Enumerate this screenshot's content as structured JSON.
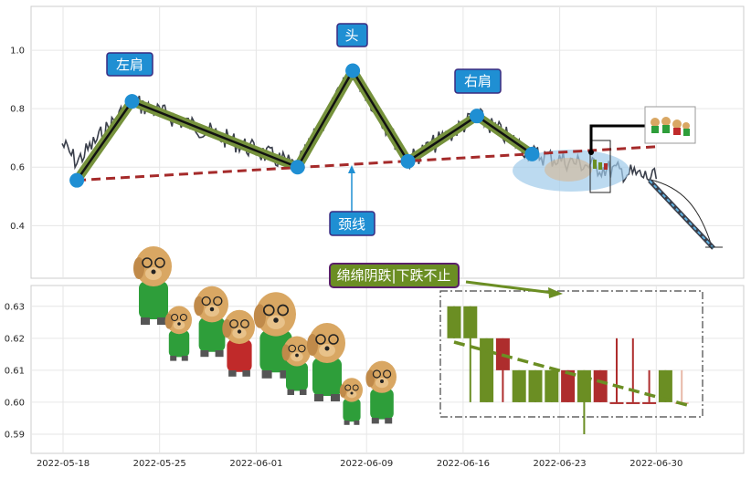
{
  "chart_data": [
    {
      "type": "line",
      "panel": "top",
      "y_ticks": [
        "0.4",
        "0.6",
        "0.8",
        "1.0"
      ],
      "y_tick_values": [
        0.4,
        0.6,
        0.8,
        1.0
      ],
      "ylim": [
        0.22,
        1.15
      ],
      "grid": true,
      "pattern_points": [
        {
          "date": "2022-05-19",
          "value": 0.555
        },
        {
          "date": "2022-05-23",
          "value": 0.825
        },
        {
          "date": "2022-06-04",
          "value": 0.6
        },
        {
          "date": "2022-06-08",
          "value": 0.93
        },
        {
          "date": "2022-06-12",
          "value": 0.62
        },
        {
          "date": "2022-06-17",
          "value": 0.775
        },
        {
          "date": "2022-06-21",
          "value": 0.645
        }
      ],
      "neckline": {
        "from": {
          "date": "2022-05-19",
          "value": 0.555
        },
        "to": {
          "date": "2022-06-30",
          "value": 0.67
        }
      },
      "annotations": {
        "left_shoulder": "左肩",
        "head": "头",
        "right_shoulder": "右肩",
        "neckline": "颈线"
      }
    },
    {
      "type": "candlestick",
      "panel": "bottom",
      "y_ticks": [
        "0.59",
        "0.60",
        "0.61",
        "0.62",
        "0.63"
      ],
      "y_tick_values": [
        0.59,
        0.6,
        0.61,
        0.62,
        0.63
      ],
      "ylim": [
        0.584,
        0.6365
      ],
      "x_ticks": [
        "2022-05-18",
        "2022-05-25",
        "2022-06-01",
        "2022-06-09",
        "2022-06-16",
        "2022-06-23",
        "2022-06-30"
      ],
      "grid": true,
      "candles": [
        {
          "open": 0.63,
          "close": 0.62,
          "high": 0.63,
          "low": 0.62,
          "color": "green"
        },
        {
          "open": 0.63,
          "close": 0.62,
          "high": 0.63,
          "low": 0.6,
          "color": "green"
        },
        {
          "open": 0.62,
          "close": 0.6,
          "high": 0.62,
          "low": 0.6,
          "color": "green"
        },
        {
          "open": 0.61,
          "close": 0.62,
          "high": 0.62,
          "low": 0.6,
          "color": "red"
        },
        {
          "open": 0.61,
          "close": 0.6,
          "high": 0.61,
          "low": 0.6,
          "color": "green"
        },
        {
          "open": 0.61,
          "close": 0.6,
          "high": 0.61,
          "low": 0.6,
          "color": "green"
        },
        {
          "open": 0.61,
          "close": 0.6,
          "high": 0.61,
          "low": 0.6,
          "color": "green"
        },
        {
          "open": 0.6,
          "close": 0.61,
          "high": 0.61,
          "low": 0.6,
          "color": "red"
        },
        {
          "open": 0.61,
          "close": 0.6,
          "high": 0.61,
          "low": 0.59,
          "color": "green"
        },
        {
          "open": 0.6,
          "close": 0.61,
          "high": 0.61,
          "low": 0.6,
          "color": "red"
        },
        {
          "open": 0.6,
          "close": 0.6,
          "high": 0.62,
          "low": 0.6,
          "color": "red"
        },
        {
          "open": 0.6,
          "close": 0.6,
          "high": 0.62,
          "low": 0.6,
          "color": "red"
        },
        {
          "open": 0.6,
          "close": 0.6,
          "high": 0.61,
          "low": 0.6,
          "color": "red"
        },
        {
          "open": 0.61,
          "close": 0.6,
          "high": 0.61,
          "low": 0.6,
          "color": "green"
        },
        {
          "open": 0.6,
          "close": 0.6,
          "high": 0.61,
          "low": 0.6,
          "color": "pink"
        }
      ],
      "annotations": {
        "trend_note": "绵绵阴跌|下跌不止"
      }
    }
  ],
  "colors": {
    "price_line": "#3a3f4b",
    "pattern_fill": "#76923c",
    "marker": "#1f8fd3",
    "neckline": "#a52a2a",
    "callout_bg": "#1f8fd3",
    "callout_border": "#3a2a80",
    "note_bg": "#6b8e23",
    "note_border": "#5b1f6b",
    "candle_up": "#ae2d2d",
    "candle_down": "#6b8e23",
    "grid": "#e6e6e6",
    "ellipse": "#9fcbea"
  },
  "decorations": [
    "puppy-sticker-group",
    "puppy-thumbnail"
  ]
}
